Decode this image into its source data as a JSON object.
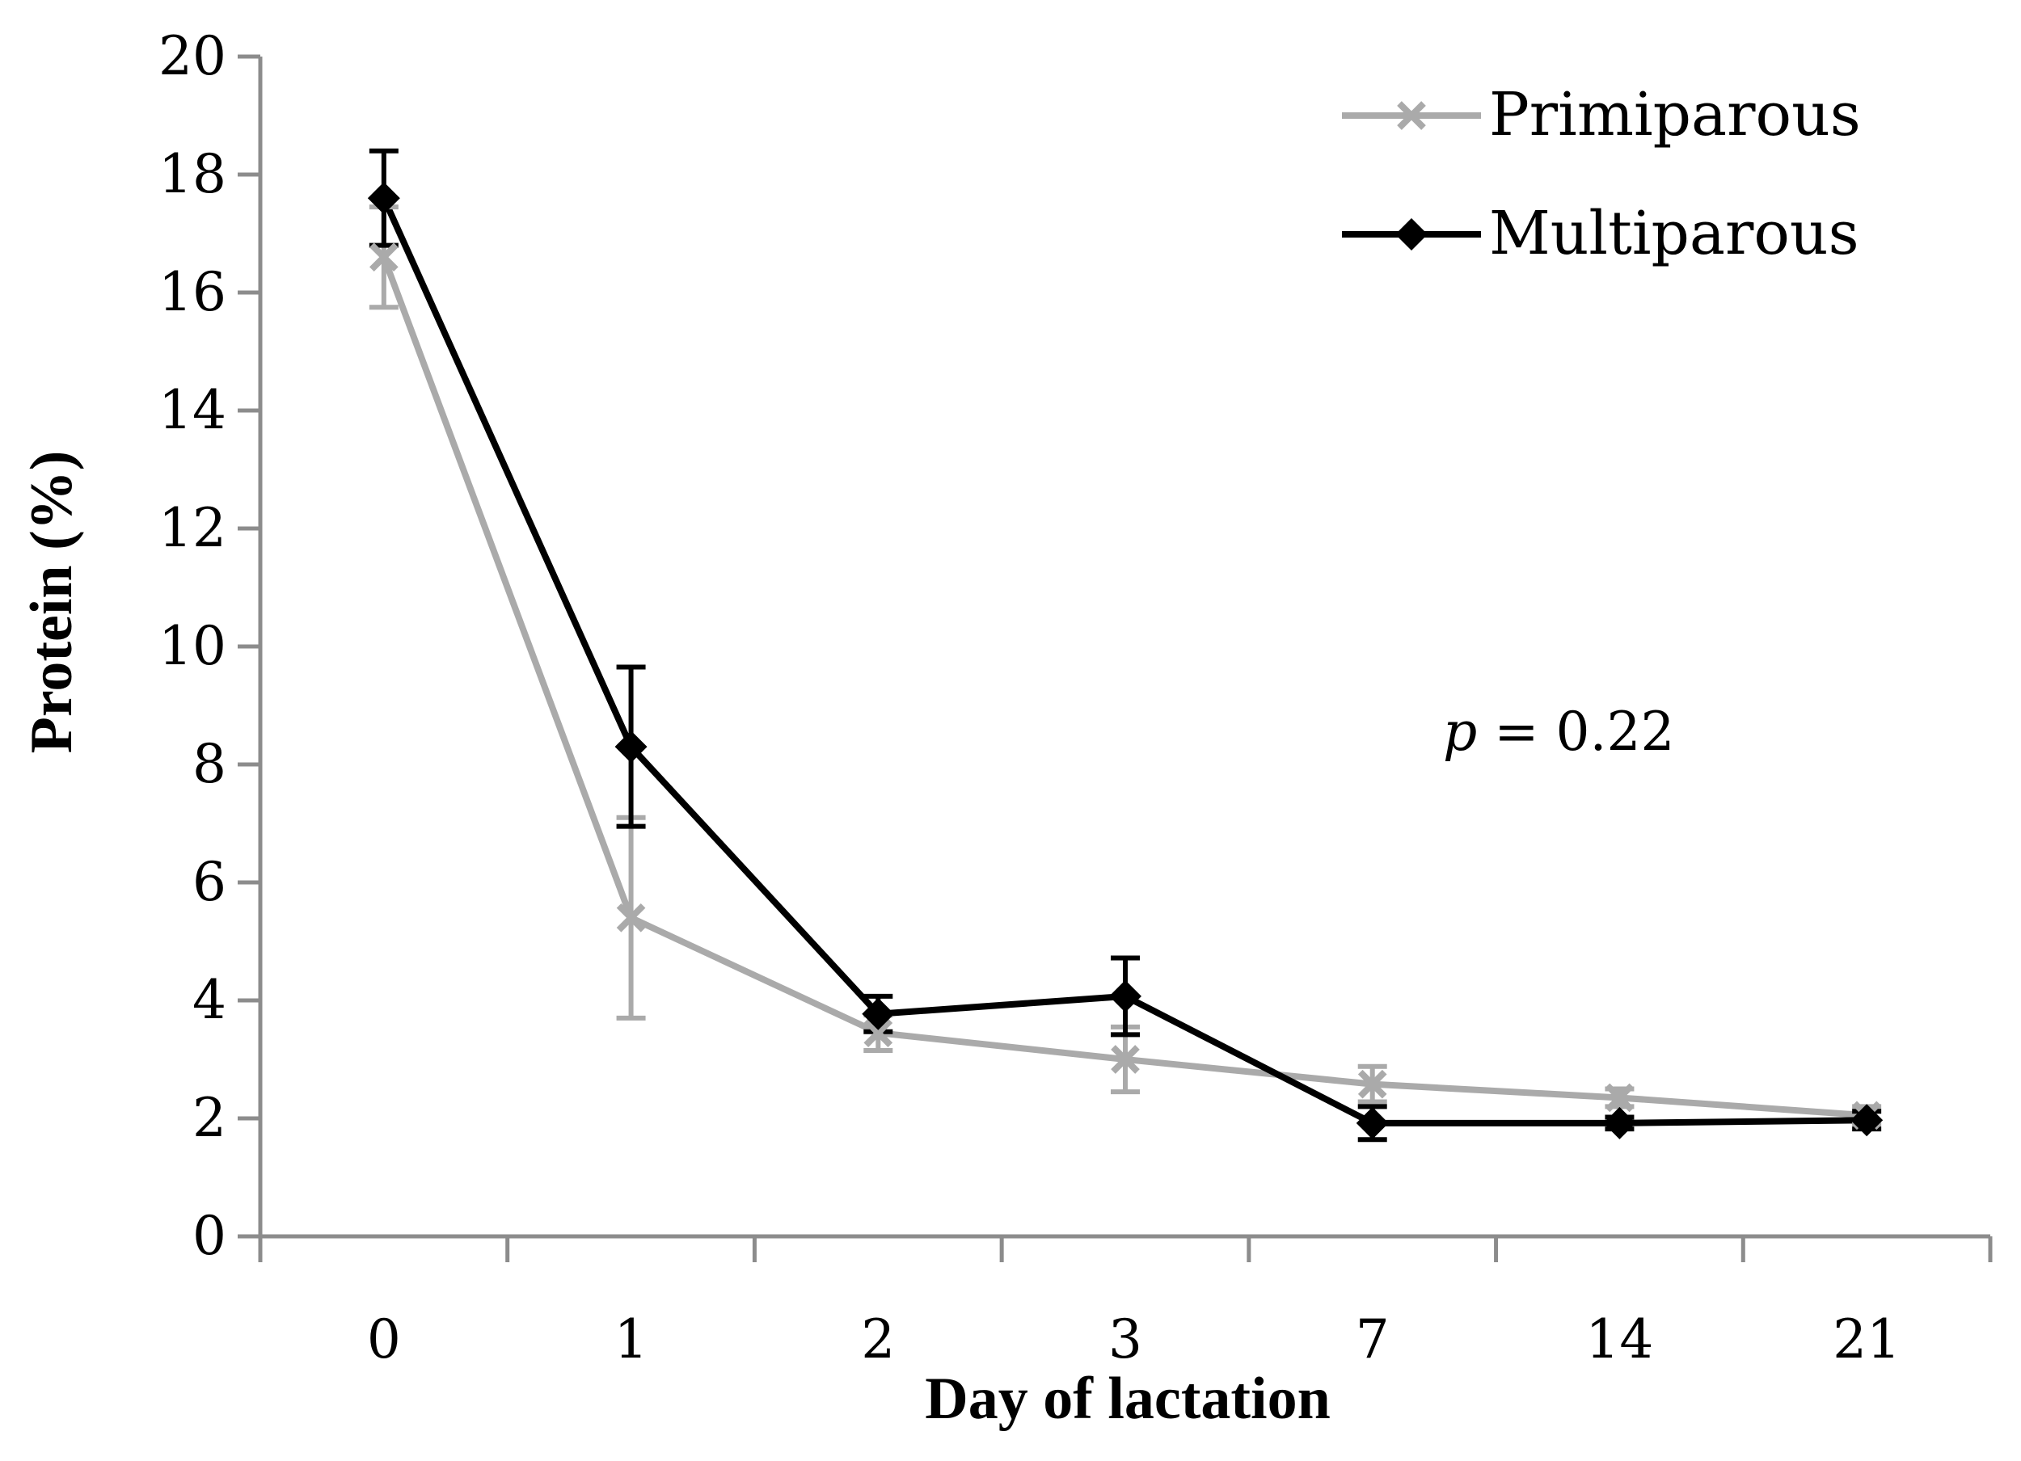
{
  "chart_data": {
    "type": "line",
    "categories": [
      "0",
      "1",
      "2",
      "3",
      "7",
      "14",
      "21"
    ],
    "xlabel": "Day of lactation",
    "ylabel": "Protein (%)",
    "ylim": [
      0,
      20
    ],
    "yticks": [
      "0",
      "2",
      "4",
      "6",
      "8",
      "10",
      "12",
      "14",
      "16",
      "18",
      "20"
    ],
    "grid": false,
    "legend_position": "top-right",
    "series": [
      {
        "name": "Primiparous",
        "color": "#aaaaaa",
        "marker": "x",
        "values": [
          16.6,
          5.4,
          3.45,
          3.0,
          2.58,
          2.35,
          2.05
        ],
        "errors": [
          0.85,
          1.7,
          0.3,
          0.55,
          0.3,
          0.15,
          0.15
        ]
      },
      {
        "name": "Multiparous",
        "color": "#000000",
        "marker": "diamond",
        "values": [
          17.6,
          8.3,
          3.77,
          4.07,
          1.92,
          1.92,
          1.97
        ],
        "errors": [
          0.8,
          1.35,
          0.3,
          0.65,
          0.28,
          0.1,
          0.15
        ]
      }
    ],
    "annotation": {
      "italic": "p",
      "rest": " = 0.22"
    }
  }
}
